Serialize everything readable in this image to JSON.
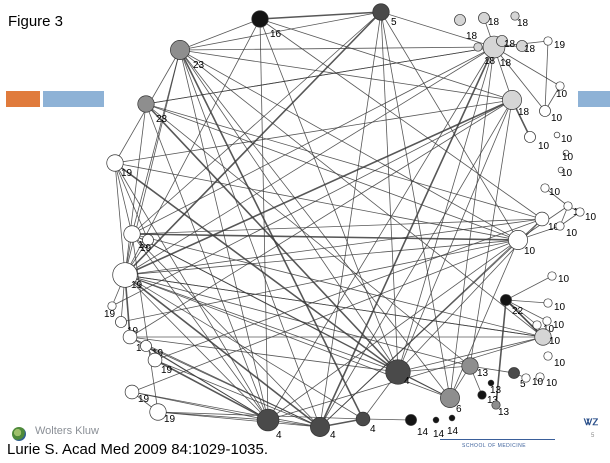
{
  "slide": {
    "title": "Figure 3",
    "citation": "Lurie S. Acad Med 2009 84:1029-1035.",
    "publisher_logo_text": "Wolters Kluw",
    "crest_text": "ᏔᏃ",
    "slide_number": "5",
    "school_text": "SCHOOL OF MEDICINE"
  },
  "colors": {
    "accent_orange": "#e07b3c",
    "accent_blue": "#8eb2d6",
    "edge": "#3a3a3a"
  },
  "network": {
    "nodes": [
      {
        "id": "a16",
        "label": "16",
        "shade": "black",
        "size": 5
      },
      {
        "id": "a5",
        "label": "5",
        "shade": "dark",
        "size": 5
      },
      {
        "id": "a23t",
        "label": "23",
        "shade": "gray",
        "size": 6
      },
      {
        "id": "a23",
        "label": "23",
        "shade": "gray",
        "size": 5
      },
      {
        "id": "r18a",
        "label": "18",
        "shade": "light",
        "size": 3
      },
      {
        "id": "r18b",
        "label": "18",
        "shade": "light",
        "size": 3
      },
      {
        "id": "r18c",
        "label": "18",
        "shade": "light",
        "size": 2
      },
      {
        "id": "r18d",
        "label": "18",
        "shade": "light",
        "size": 7
      },
      {
        "id": "r18e",
        "label": "18",
        "shade": "light",
        "size": 3
      },
      {
        "id": "r18f",
        "label": "18",
        "shade": "light",
        "size": 3
      },
      {
        "id": "r18g",
        "label": "18",
        "shade": "light",
        "size": 2
      },
      {
        "id": "r18m",
        "label": "18",
        "shade": "light",
        "size": 6
      },
      {
        "id": "r19",
        "label": "19",
        "shade": "white",
        "size": 2
      },
      {
        "id": "c10a",
        "label": "10",
        "shade": "white",
        "size": 2
      },
      {
        "id": "c10b",
        "label": "10",
        "shade": "white",
        "size": 3
      },
      {
        "id": "c10c",
        "label": "10",
        "shade": "white",
        "size": 3
      },
      {
        "id": "c10d",
        "label": "10",
        "shade": "white",
        "size": 1
      },
      {
        "id": "c10e",
        "label": "10",
        "shade": "white",
        "size": 1
      },
      {
        "id": "c10f",
        "label": "10",
        "shade": "white",
        "size": 1
      },
      {
        "id": "c10g",
        "label": "10",
        "shade": "white",
        "size": 2
      },
      {
        "id": "c10h",
        "label": "10",
        "shade": "white",
        "size": 4
      },
      {
        "id": "c10i",
        "label": "10",
        "shade": "white",
        "size": 2
      },
      {
        "id": "c10j",
        "label": "10",
        "shade": "white",
        "size": 2
      },
      {
        "id": "c10k",
        "label": "10",
        "shade": "white",
        "size": 2
      },
      {
        "id": "c10l",
        "label": "10",
        "shade": "white",
        "size": 6
      },
      {
        "id": "c22",
        "label": "22",
        "shade": "black",
        "size": 3
      },
      {
        "id": "c10m",
        "label": "10",
        "shade": "white",
        "size": 2
      },
      {
        "id": "c10n",
        "label": "10",
        "shade": "white",
        "size": 2
      },
      {
        "id": "c10o",
        "label": "10",
        "shade": "white",
        "size": 2
      },
      {
        "id": "c10p",
        "label": "10",
        "shade": "white",
        "size": 2
      },
      {
        "id": "c10q",
        "label": "10",
        "shade": "light",
        "size": 5
      },
      {
        "id": "c10r",
        "label": "10",
        "shade": "white",
        "size": 2
      },
      {
        "id": "c10s",
        "label": "10",
        "shade": "white",
        "size": 2
      },
      {
        "id": "l19a",
        "label": "19",
        "shade": "white",
        "size": 5
      },
      {
        "id": "l19b",
        "label": "19",
        "shade": "white",
        "size": 5
      },
      {
        "id": "l19c",
        "label": "19",
        "shade": "white",
        "size": 3
      },
      {
        "id": "l19d",
        "label": "19",
        "shade": "white",
        "size": 8
      },
      {
        "id": "l19e",
        "label": "19",
        "shade": "white",
        "size": 2
      },
      {
        "id": "l19f",
        "label": "19",
        "shade": "white",
        "size": 3
      },
      {
        "id": "l19g",
        "label": "19",
        "shade": "white",
        "size": 4
      },
      {
        "id": "l19h",
        "label": "19",
        "shade": "white",
        "size": 3
      },
      {
        "id": "l19i",
        "label": "19",
        "shade": "white",
        "size": 4
      },
      {
        "id": "l19j",
        "label": "19",
        "shade": "white",
        "size": 4
      },
      {
        "id": "l19k",
        "label": "19",
        "shade": "white",
        "size": 5
      },
      {
        "id": "b4a",
        "label": "4",
        "shade": "dark",
        "size": 7
      },
      {
        "id": "b4b",
        "label": "4",
        "shade": "dark",
        "size": 6
      },
      {
        "id": "b4c",
        "label": "4",
        "shade": "dark",
        "size": 4
      },
      {
        "id": "b14a",
        "label": "14",
        "shade": "black",
        "size": 3
      },
      {
        "id": "b14b",
        "label": "14",
        "shade": "black",
        "size": 1
      },
      {
        "id": "b14c",
        "label": "14",
        "shade": "black",
        "size": 1
      },
      {
        "id": "b6",
        "label": "6",
        "shade": "gray",
        "size": 6
      },
      {
        "id": "b4d",
        "label": "4",
        "shade": "dark",
        "size": 8
      },
      {
        "id": "b13a",
        "label": "13",
        "shade": "gray",
        "size": 5
      },
      {
        "id": "b13b",
        "label": "13",
        "shade": "black",
        "size": 2
      },
      {
        "id": "b13c",
        "label": "13",
        "shade": "black",
        "size": 1
      },
      {
        "id": "b13d",
        "label": "13",
        "shade": "gray",
        "size": 2
      },
      {
        "id": "b5",
        "label": "5",
        "shade": "dark",
        "size": 3
      },
      {
        "id": "b10",
        "label": "10",
        "shade": "white",
        "size": 2
      }
    ],
    "edges": [
      [
        "a16",
        "a5"
      ],
      [
        "a16",
        "a23t"
      ],
      [
        "a16",
        "r18m"
      ],
      [
        "a16",
        "b4d"
      ],
      [
        "a16",
        "l19d"
      ],
      [
        "a16",
        "b4a"
      ],
      [
        "a16",
        "c10h"
      ],
      [
        "a5",
        "r18d"
      ],
      [
        "a5",
        "a23t"
      ],
      [
        "a5",
        "l19d"
      ],
      [
        "a5",
        "b4b"
      ],
      [
        "a5",
        "b4d"
      ],
      [
        "a5",
        "c10l"
      ],
      [
        "a5",
        "l19b"
      ],
      [
        "a5",
        "b6"
      ],
      [
        "a23t",
        "b4d"
      ],
      [
        "a23t",
        "b4a"
      ],
      [
        "a23t",
        "b4b"
      ],
      [
        "a23t",
        "b4c"
      ],
      [
        "a23t",
        "l19d"
      ],
      [
        "a23t",
        "r18d"
      ],
      [
        "a23t",
        "r18m"
      ],
      [
        "a23t",
        "c10l"
      ],
      [
        "a23t",
        "c10q"
      ],
      [
        "a23t",
        "b6"
      ],
      [
        "a23t",
        "l19a"
      ],
      [
        "a23t",
        "l19b"
      ],
      [
        "a23",
        "b4d"
      ],
      [
        "a23",
        "b4a"
      ],
      [
        "a23",
        "r18d"
      ],
      [
        "a23",
        "c10l"
      ],
      [
        "a23",
        "l19d"
      ],
      [
        "a23",
        "b13a"
      ],
      [
        "a23",
        "c10h"
      ],
      [
        "r18d",
        "l19d"
      ],
      [
        "r18d",
        "b4a"
      ],
      [
        "r18d",
        "b4b"
      ],
      [
        "r18d",
        "b4d"
      ],
      [
        "r18d",
        "l19b"
      ],
      [
        "r18d",
        "b6"
      ],
      [
        "r18d",
        "a23"
      ],
      [
        "r18d",
        "r18m"
      ],
      [
        "r18d",
        "r18e"
      ],
      [
        "r18d",
        "r18f"
      ],
      [
        "r18d",
        "r18b"
      ],
      [
        "r18m",
        "l19d"
      ],
      [
        "r18m",
        "b4b"
      ],
      [
        "r18m",
        "l19a"
      ],
      [
        "r18m",
        "b4d"
      ],
      [
        "r18m",
        "b13a"
      ],
      [
        "r18m",
        "l19e"
      ],
      [
        "r18m",
        "l19g"
      ],
      [
        "c10l",
        "l19d"
      ],
      [
        "c10l",
        "b4a"
      ],
      [
        "c10l",
        "l19b"
      ],
      [
        "c10l",
        "b4b"
      ],
      [
        "c10l",
        "l19f"
      ],
      [
        "c10l",
        "b6"
      ],
      [
        "c10l",
        "l19j"
      ],
      [
        "c10q",
        "l19d"
      ],
      [
        "c10q",
        "b4a"
      ],
      [
        "c10q",
        "b4d"
      ],
      [
        "c10q",
        "l19g"
      ],
      [
        "c10q",
        "c22"
      ],
      [
        "c10q",
        "l19b"
      ],
      [
        "c10h",
        "l19d"
      ],
      [
        "c10h",
        "b4b"
      ],
      [
        "c10h",
        "l19i"
      ],
      [
        "c10h",
        "b4d"
      ],
      [
        "c10h",
        "l19b"
      ],
      [
        "l19d",
        "b4d"
      ],
      [
        "l19d",
        "b4a"
      ],
      [
        "l19d",
        "b4b"
      ],
      [
        "l19d",
        "b4c"
      ],
      [
        "l19d",
        "b6"
      ],
      [
        "l19d",
        "b13a"
      ],
      [
        "l19d",
        "l19a"
      ],
      [
        "l19d",
        "l19b"
      ],
      [
        "l19d",
        "l19c"
      ],
      [
        "l19d",
        "l19e"
      ],
      [
        "l19d",
        "l19f"
      ],
      [
        "l19d",
        "l19g"
      ],
      [
        "l19d",
        "c10q"
      ],
      [
        "l19b",
        "b4d"
      ],
      [
        "l19b",
        "b4a"
      ],
      [
        "l19b",
        "b4b"
      ],
      [
        "l19b",
        "b6"
      ],
      [
        "l19b",
        "l19a"
      ],
      [
        "l19b",
        "l19k"
      ],
      [
        "l19a",
        "b4a"
      ],
      [
        "l19a",
        "b4d"
      ],
      [
        "l19a",
        "l19c"
      ],
      [
        "l19a",
        "c10l"
      ],
      [
        "l19g",
        "b4a"
      ],
      [
        "l19g",
        "b4b"
      ],
      [
        "l19g",
        "b4d"
      ],
      [
        "l19h",
        "b4a"
      ],
      [
        "l19h",
        "b4b"
      ],
      [
        "l19h",
        "l19i"
      ],
      [
        "l19i",
        "b4a"
      ],
      [
        "l19i",
        "b4b"
      ],
      [
        "l19j",
        "b4a"
      ],
      [
        "l19j",
        "b4b"
      ],
      [
        "l19j",
        "l19k"
      ],
      [
        "l19k",
        "b4a"
      ],
      [
        "l19k",
        "b4b"
      ],
      [
        "l19k",
        "b4c"
      ],
      [
        "b4a",
        "b4b"
      ],
      [
        "b4b",
        "b4c"
      ],
      [
        "b4c",
        "b14a"
      ],
      [
        "b4c",
        "b4d"
      ],
      [
        "b4d",
        "b6"
      ],
      [
        "b4d",
        "b13a"
      ],
      [
        "b6",
        "b13a"
      ],
      [
        "b13a",
        "b5"
      ],
      [
        "b13a",
        "b13b"
      ],
      [
        "b5",
        "b10"
      ],
      [
        "c22",
        "b13d"
      ],
      [
        "c22",
        "c10m"
      ],
      [
        "c22",
        "c10n"
      ],
      [
        "c22",
        "c10o"
      ],
      [
        "c22",
        "c10p"
      ],
      [
        "c22",
        "c10q"
      ],
      [
        "r18d",
        "r19"
      ],
      [
        "r18d",
        "c10a"
      ],
      [
        "r18d",
        "c10b"
      ],
      [
        "r18m",
        "c10c"
      ],
      [
        "r19",
        "c10b"
      ],
      [
        "c10b",
        "c10a"
      ],
      [
        "c10i",
        "c10j"
      ],
      [
        "c10j",
        "c10k"
      ],
      [
        "c10i",
        "c10k"
      ],
      [
        "c10i",
        "c10g"
      ],
      [
        "c10l",
        "c10i"
      ],
      [
        "c10l",
        "c10k"
      ]
    ]
  }
}
